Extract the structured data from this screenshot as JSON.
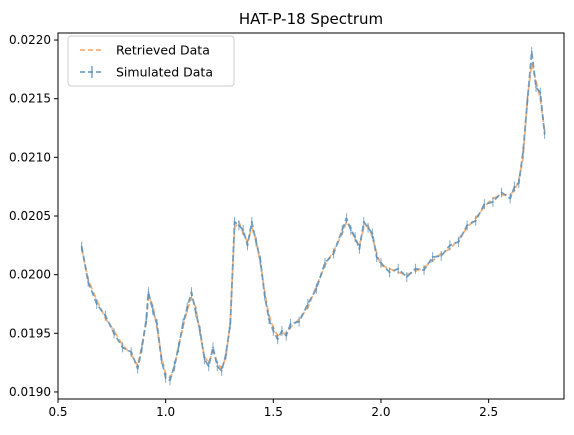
{
  "chart_data": {
    "type": "line",
    "title": "HAT-P-18 Spectrum",
    "xlabel": "",
    "ylabel": "",
    "xlim": [
      0.5,
      2.85
    ],
    "ylim": [
      0.01894,
      0.02206
    ],
    "xticks": [
      0.5,
      1.0,
      1.5,
      2.0,
      2.5
    ],
    "xtick_labels": [
      "0.5",
      "1.0",
      "1.5",
      "2.0",
      "2.5"
    ],
    "yticks": [
      0.019,
      0.0195,
      0.02,
      0.0205,
      0.021,
      0.0215,
      0.022
    ],
    "ytick_labels": [
      "0.0190",
      "0.0195",
      "0.0200",
      "0.0205",
      "0.0210",
      "0.0215",
      "0.0220"
    ],
    "grid": false,
    "legend_position": "top-left",
    "series": [
      {
        "name": "Retrieved Data",
        "style": "dashed",
        "color": "#f4a460",
        "x": [
          0.61,
          0.64,
          0.68,
          0.72,
          0.76,
          0.8,
          0.84,
          0.87,
          0.89,
          0.91,
          0.92,
          0.94,
          0.96,
          0.98,
          1.0,
          1.02,
          1.04,
          1.06,
          1.08,
          1.1,
          1.12,
          1.14,
          1.16,
          1.18,
          1.2,
          1.22,
          1.24,
          1.26,
          1.28,
          1.3,
          1.32,
          1.34,
          1.36,
          1.38,
          1.4,
          1.42,
          1.44,
          1.46,
          1.48,
          1.5,
          1.52,
          1.54,
          1.56,
          1.58,
          1.62,
          1.66,
          1.7,
          1.74,
          1.78,
          1.82,
          1.84,
          1.86,
          1.88,
          1.9,
          1.92,
          1.94,
          1.96,
          1.98,
          2.0,
          2.04,
          2.08,
          2.12,
          2.16,
          2.2,
          2.24,
          2.28,
          2.32,
          2.36,
          2.4,
          2.44,
          2.48,
          2.52,
          2.56,
          2.6,
          2.62,
          2.64,
          2.66,
          2.68,
          2.7,
          2.72,
          2.74,
          2.76
        ],
        "y": [
          0.02022,
          0.01996,
          0.01978,
          0.01963,
          0.01952,
          0.0194,
          0.01932,
          0.01922,
          0.0194,
          0.0196,
          0.01982,
          0.01974,
          0.01955,
          0.0193,
          0.01915,
          0.01912,
          0.0192,
          0.0194,
          0.01955,
          0.0197,
          0.0198,
          0.01972,
          0.0195,
          0.0193,
          0.01925,
          0.01935,
          0.01925,
          0.0192,
          0.0193,
          0.0196,
          0.0204,
          0.02045,
          0.02035,
          0.02028,
          0.0204,
          0.0203,
          0.0201,
          0.01985,
          0.01965,
          0.01955,
          0.01948,
          0.0195,
          0.0195,
          0.01955,
          0.01962,
          0.01972,
          0.0199,
          0.02008,
          0.0202,
          0.02035,
          0.02045,
          0.0204,
          0.0203,
          0.02025,
          0.0204,
          0.02042,
          0.02032,
          0.02018,
          0.02008,
          0.02005,
          0.02002,
          0.02,
          0.02003,
          0.02006,
          0.02012,
          0.02018,
          0.02022,
          0.0203,
          0.0204,
          0.02048,
          0.02058,
          0.02065,
          0.02068,
          0.02068,
          0.02072,
          0.0208,
          0.021,
          0.0215,
          0.0218,
          0.02165,
          0.0215,
          0.02122
        ]
      },
      {
        "name": "Simulated Data",
        "style": "dashed-errorbar",
        "color": "#5b8fb9",
        "x": [
          0.61,
          0.64,
          0.68,
          0.72,
          0.76,
          0.8,
          0.84,
          0.87,
          0.89,
          0.91,
          0.92,
          0.94,
          0.96,
          0.98,
          1.0,
          1.02,
          1.04,
          1.06,
          1.08,
          1.1,
          1.12,
          1.14,
          1.16,
          1.18,
          1.2,
          1.22,
          1.24,
          1.26,
          1.28,
          1.3,
          1.32,
          1.34,
          1.36,
          1.38,
          1.4,
          1.42,
          1.44,
          1.46,
          1.48,
          1.5,
          1.52,
          1.54,
          1.56,
          1.58,
          1.62,
          1.66,
          1.7,
          1.74,
          1.78,
          1.82,
          1.84,
          1.86,
          1.88,
          1.9,
          1.92,
          1.94,
          1.96,
          1.98,
          2.0,
          2.04,
          2.08,
          2.12,
          2.16,
          2.2,
          2.24,
          2.28,
          2.32,
          2.36,
          2.4,
          2.44,
          2.48,
          2.52,
          2.56,
          2.6,
          2.62,
          2.64,
          2.66,
          2.68,
          2.7,
          2.72,
          2.74,
          2.76
        ],
        "y": [
          0.02024,
          0.01994,
          0.01975,
          0.01965,
          0.0195,
          0.01938,
          0.01934,
          0.0192,
          0.01938,
          0.01962,
          0.01985,
          0.0197,
          0.01958,
          0.01928,
          0.01912,
          0.0191,
          0.01922,
          0.01938,
          0.01958,
          0.01972,
          0.01985,
          0.01968,
          0.01952,
          0.01928,
          0.01922,
          0.01938,
          0.01922,
          0.01918,
          0.01932,
          0.01958,
          0.02045,
          0.02042,
          0.02038,
          0.02025,
          0.02045,
          0.02028,
          0.02012,
          0.01982,
          0.01962,
          0.01952,
          0.01945,
          0.01952,
          0.01948,
          0.01958,
          0.0196,
          0.01975,
          0.01988,
          0.0201,
          0.02018,
          0.02038,
          0.02048,
          0.02038,
          0.02032,
          0.02022,
          0.02045,
          0.0204,
          0.02035,
          0.02015,
          0.0201,
          0.02002,
          0.02005,
          0.01998,
          0.02005,
          0.02004,
          0.02015,
          0.02016,
          0.02025,
          0.02028,
          0.02042,
          0.02046,
          0.0206,
          0.02062,
          0.0207,
          0.02065,
          0.02075,
          0.02078,
          0.02105,
          0.02148,
          0.0219,
          0.0216,
          0.02155,
          0.0212
        ]
      }
    ]
  }
}
